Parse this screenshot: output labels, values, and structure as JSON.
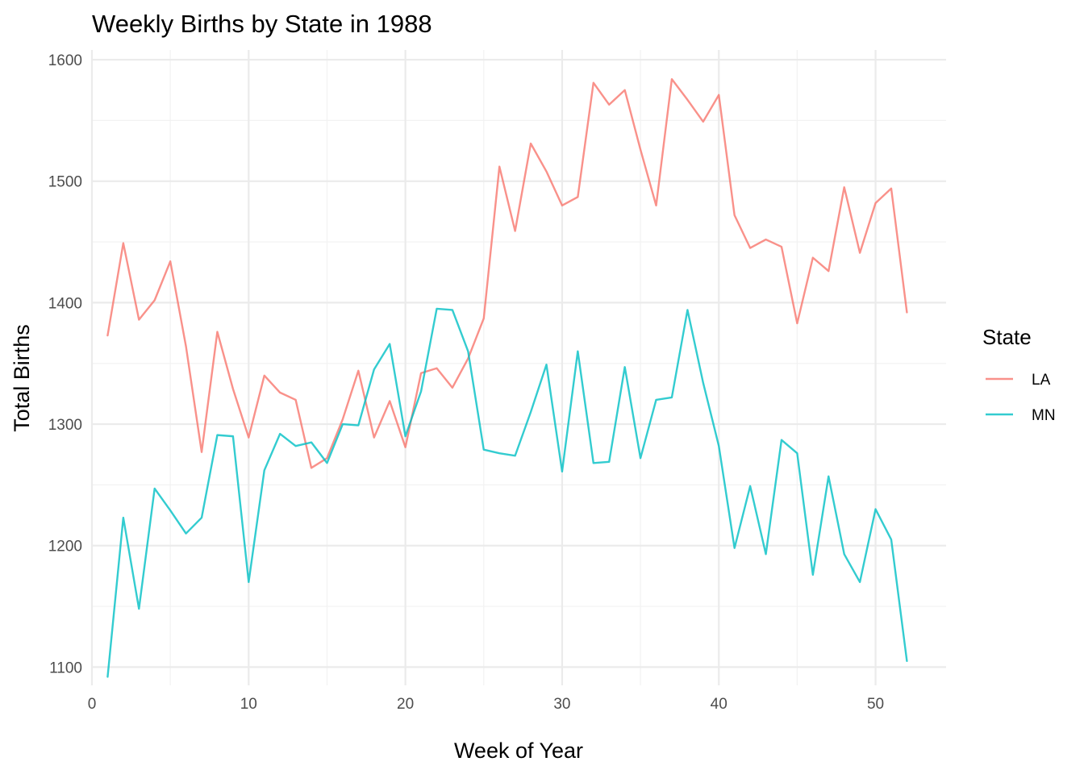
{
  "chart_data": {
    "type": "line",
    "title": "Weekly Births by State in 1988",
    "xlabel": "Week of Year",
    "ylabel": "Total Births",
    "xlim": [
      0,
      54.5
    ],
    "ylim": [
      1085,
      1608
    ],
    "x_ticks": [
      0,
      10,
      20,
      30,
      40,
      50
    ],
    "y_ticks": [
      1100,
      1200,
      1300,
      1400,
      1500,
      1600
    ],
    "x_minor_ticks": [
      5,
      15,
      25,
      35,
      45
    ],
    "y_minor_ticks": [
      1150,
      1250,
      1350,
      1450,
      1550
    ],
    "grid": true,
    "legend": {
      "title": "State",
      "placement": "right"
    },
    "x": [
      1,
      2,
      3,
      4,
      5,
      6,
      7,
      8,
      9,
      10,
      11,
      12,
      13,
      14,
      15,
      16,
      17,
      18,
      19,
      20,
      21,
      22,
      23,
      24,
      25,
      26,
      27,
      28,
      29,
      30,
      31,
      32,
      33,
      34,
      35,
      36,
      37,
      38,
      39,
      40,
      41,
      42,
      43,
      44,
      45,
      46,
      47,
      48,
      49,
      50,
      51,
      52
    ],
    "series": [
      {
        "name": "LA",
        "color": "#F8766D",
        "values": [
          1373,
          1449,
          1386,
          1402,
          1434,
          1364,
          1277,
          1376,
          1329,
          1289,
          1340,
          1326,
          1320,
          1264,
          1272,
          1304,
          1344,
          1289,
          1319,
          1281,
          1342,
          1346,
          1330,
          1354,
          1387,
          1512,
          1459,
          1531,
          1508,
          1480,
          1487,
          1581,
          1563,
          1575,
          1526,
          1480,
          1584,
          1567,
          1549,
          1571,
          1472,
          1445,
          1452,
          1446,
          1383,
          1437,
          1426,
          1495,
          1441,
          1482,
          1494,
          1392
        ]
      },
      {
        "name": "MN",
        "color": "#00BFC4",
        "values": [
          1092,
          1223,
          1148,
          1247,
          1229,
          1210,
          1223,
          1291,
          1290,
          1170,
          1262,
          1292,
          1282,
          1285,
          1268,
          1300,
          1299,
          1345,
          1366,
          1290,
          1327,
          1395,
          1394,
          1360,
          1279,
          1276,
          1274,
          1310,
          1349,
          1261,
          1360,
          1268,
          1269,
          1347,
          1272,
          1320,
          1322,
          1394,
          1334,
          1282,
          1198,
          1249,
          1193,
          1287,
          1276,
          1176,
          1257,
          1193,
          1170,
          1230,
          1205,
          1105
        ]
      }
    ]
  }
}
